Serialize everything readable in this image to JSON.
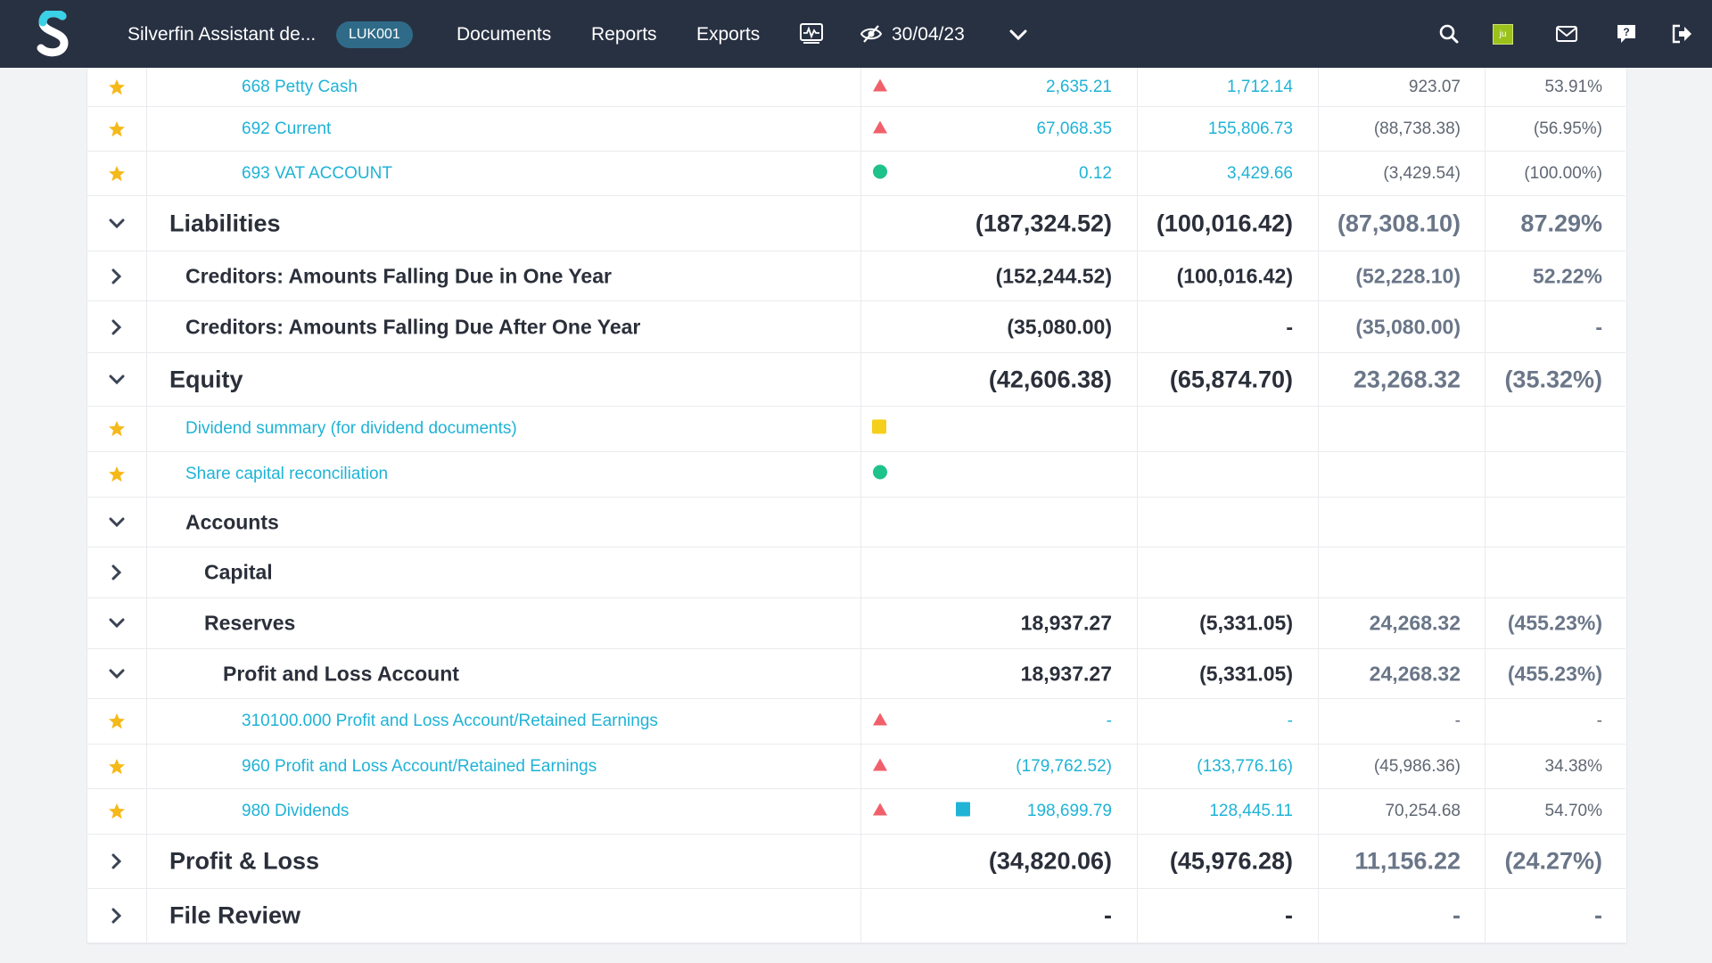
{
  "header": {
    "app_title": "Silverfin Assistant de...",
    "entity_code": "LUK001",
    "nav": [
      "Documents",
      "Reports",
      "Exports"
    ],
    "period": "30/04/23",
    "avatar_initials": "ju",
    "icons": [
      "silverfin-logo-icon",
      "activity-monitor-icon",
      "eye-hidden-icon",
      "chevron-down-icon",
      "search-icon",
      "mail-icon",
      "help-icon",
      "logout-icon"
    ]
  },
  "colors": {
    "header_bg": "#283142",
    "link": "#1fb3d6",
    "star": "#f6b91a",
    "triangle_red": "#f0606b",
    "dot_green": "#1ec28b",
    "square_yellow": "#f6cf1a",
    "square_blue": "#1fb3d6"
  },
  "rows": [
    {
      "label": "668 Petty Cash",
      "v1": "2,635.21",
      "v2": "1,712.14",
      "v3": "923.07",
      "v4": "53.91%",
      "marker": "triangle"
    },
    {
      "label": "692 Current",
      "v1": "67,068.35",
      "v2": "155,806.73",
      "v3": "(88,738.38)",
      "v4": "(56.95%)",
      "marker": "triangle"
    },
    {
      "label": "693 VAT ACCOUNT",
      "v1": "0.12",
      "v2": "3,429.66",
      "v3": "(3,429.54)",
      "v4": "(100.00%)",
      "marker": "dot"
    },
    {
      "label": "Liabilities",
      "v1": "(187,324.52)",
      "v2": "(100,016.42)",
      "v3": "(87,308.10)",
      "v4": "87.29%"
    },
    {
      "label": "Creditors: Amounts Falling Due in One Year",
      "v1": "(152,244.52)",
      "v2": "(100,016.42)",
      "v3": "(52,228.10)",
      "v4": "52.22%"
    },
    {
      "label": "Creditors: Amounts Falling Due After One Year",
      "v1": "(35,080.00)",
      "v2": "-",
      "v3": "(35,080.00)",
      "v4": "-"
    },
    {
      "label": "Equity",
      "v1": "(42,606.38)",
      "v2": "(65,874.70)",
      "v3": "23,268.32",
      "v4": "(35.32%)"
    },
    {
      "label": "Dividend summary (for dividend documents)",
      "marker": "square-yellow"
    },
    {
      "label": "Share capital reconciliation",
      "marker": "dot"
    },
    {
      "label": "Accounts"
    },
    {
      "label": "Capital"
    },
    {
      "label": "Reserves",
      "v1": "18,937.27",
      "v2": "(5,331.05)",
      "v3": "24,268.32",
      "v4": "(455.23%)"
    },
    {
      "label": "Profit and Loss Account",
      "v1": "18,937.27",
      "v2": "(5,331.05)",
      "v3": "24,268.32",
      "v4": "(455.23%)"
    },
    {
      "label": "310100.000 Profit and Loss Account/Retained Earnings",
      "v1": "-",
      "v2": "-",
      "v3": "-",
      "v4": "-",
      "marker": "triangle"
    },
    {
      "label": "960 Profit and Loss Account/Retained Earnings",
      "v1": "(179,762.52)",
      "v2": "(133,776.16)",
      "v3": "(45,986.36)",
      "v4": "34.38%",
      "marker": "triangle"
    },
    {
      "label": "980 Dividends",
      "v1": "198,699.79",
      "v2": "128,445.11",
      "v3": "70,254.68",
      "v4": "54.70%",
      "marker": "triangle",
      "extra_marker": "square-blue"
    },
    {
      "label": "Profit & Loss",
      "v1": "(34,820.06)",
      "v2": "(45,976.28)",
      "v3": "11,156.22",
      "v4": "(24.27%)"
    },
    {
      "label": "File Review",
      "v1": "-",
      "v2": "-",
      "v3": "-",
      "v4": "-"
    }
  ]
}
